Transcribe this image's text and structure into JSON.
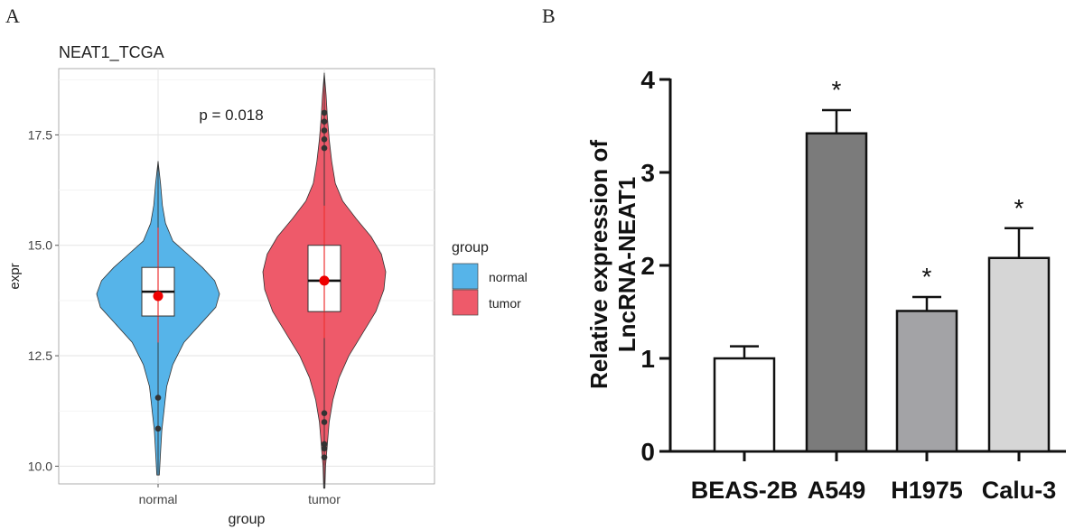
{
  "panels": {
    "a": {
      "label": "A"
    },
    "b": {
      "label": "B"
    }
  },
  "chart_data": [
    {
      "type": "violin",
      "title": "NEAT1_TCGA",
      "xlabel": "group",
      "ylabel": "expr",
      "annotation": "p = 0.018",
      "categories": [
        "normal",
        "tumor"
      ],
      "ylim": [
        9.6,
        19.0
      ],
      "yticks": [
        10.0,
        12.5,
        15.0,
        17.5
      ],
      "ytick_labels": [
        "10.0",
        "12.5",
        "15.0",
        "17.5"
      ],
      "grid": true,
      "legend": {
        "title": "group",
        "position": "right",
        "entries": [
          "normal",
          "tumor"
        ]
      },
      "colors": {
        "normal": "#56B4E9",
        "tumor": "#EE5A6A",
        "mean_point": "#ee0000"
      },
      "series": [
        {
          "category": "normal",
          "min": 9.8,
          "max": 16.9,
          "q1": 13.4,
          "median": 13.95,
          "q3": 14.5,
          "mean": 13.85,
          "outliers": [
            11.55,
            10.85
          ],
          "density": [
            [
              9.8,
              0.02
            ],
            [
              10.3,
              0.04
            ],
            [
              10.8,
              0.06
            ],
            [
              11.3,
              0.1
            ],
            [
              11.8,
              0.14
            ],
            [
              12.3,
              0.24
            ],
            [
              12.8,
              0.42
            ],
            [
              13.2,
              0.68
            ],
            [
              13.6,
              0.94
            ],
            [
              13.9,
              1.0
            ],
            [
              14.2,
              0.92
            ],
            [
              14.5,
              0.72
            ],
            [
              14.8,
              0.48
            ],
            [
              15.1,
              0.24
            ],
            [
              15.5,
              0.12
            ],
            [
              15.9,
              0.07
            ],
            [
              16.4,
              0.04
            ],
            [
              16.9,
              0.0
            ]
          ]
        },
        {
          "category": "tumor",
          "min": 9.5,
          "max": 18.9,
          "q1": 13.5,
          "median": 14.2,
          "q3": 15.0,
          "mean": 14.2,
          "outliers": [
            18.0,
            17.8,
            17.6,
            17.4,
            17.2,
            11.2,
            11.0,
            10.5,
            10.4,
            10.2
          ],
          "density": [
            [
              9.5,
              0.01
            ],
            [
              10.0,
              0.02
            ],
            [
              10.5,
              0.05
            ],
            [
              11.0,
              0.08
            ],
            [
              11.5,
              0.14
            ],
            [
              12.0,
              0.24
            ],
            [
              12.5,
              0.4
            ],
            [
              13.0,
              0.62
            ],
            [
              13.5,
              0.84
            ],
            [
              14.0,
              0.97
            ],
            [
              14.4,
              1.0
            ],
            [
              14.8,
              0.93
            ],
            [
              15.2,
              0.76
            ],
            [
              15.6,
              0.52
            ],
            [
              16.0,
              0.3
            ],
            [
              16.4,
              0.18
            ],
            [
              16.9,
              0.12
            ],
            [
              17.4,
              0.08
            ],
            [
              17.9,
              0.05
            ],
            [
              18.4,
              0.03
            ],
            [
              18.9,
              0.0
            ]
          ]
        }
      ]
    },
    {
      "type": "bar",
      "xlabel": "",
      "ylabel": "Relative expression of LncRNA-NEAT1",
      "ylabel_lines": [
        "Relative expression of",
        "LncRNA-NEAT1"
      ],
      "categories": [
        "BEAS-2B",
        "A549",
        "H1975",
        "Calu-3"
      ],
      "values": [
        1.0,
        3.42,
        1.51,
        2.08
      ],
      "errors": [
        0.13,
        0.25,
        0.15,
        0.32
      ],
      "significance": [
        "",
        "*",
        "*",
        "*"
      ],
      "colors": [
        "#ffffff",
        "#7b7b7b",
        "#a3a3a6",
        "#d6d6d6"
      ],
      "ylim": [
        0,
        4
      ],
      "yticks": [
        0,
        1,
        2,
        3,
        4
      ],
      "ytick_labels": [
        "0",
        "1",
        "2",
        "3",
        "4"
      ],
      "grid": false
    }
  ]
}
